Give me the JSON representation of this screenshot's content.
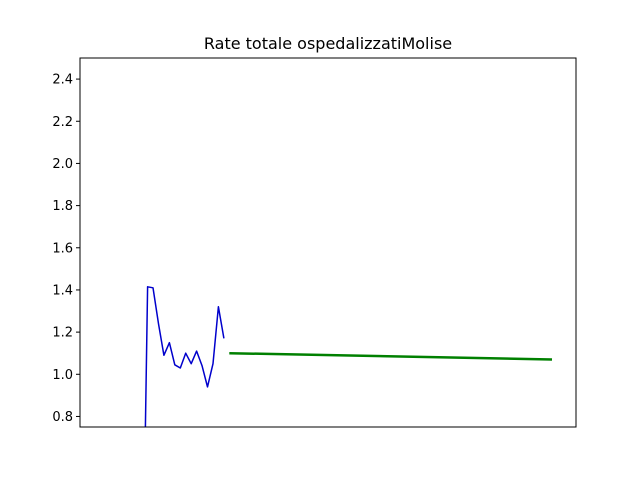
{
  "chart_data": {
    "type": "line",
    "title": "Rate totale ospedalizzatiMolise",
    "xlabel": "",
    "ylabel": "",
    "xlim": [
      0,
      91
    ],
    "ylim": [
      0.75,
      2.5
    ],
    "x_ticks_visible": false,
    "y_ticks": [
      0.8,
      1.0,
      1.2,
      1.4,
      1.6,
      1.8,
      2.0,
      2.2,
      2.4
    ],
    "y_tick_labels": [
      "0.8",
      "1.0",
      "1.2",
      "1.4",
      "1.6",
      "1.8",
      "2.0",
      "2.2",
      "2.4"
    ],
    "grid": false,
    "series": [
      {
        "color": "#0000cc",
        "line_width": 1.5,
        "x": [
          12,
          12.4,
          13.4,
          14.4,
          15.4,
          16.4,
          17.4,
          18.4,
          19.4,
          20.4,
          21.4,
          22.4,
          23.4,
          24.4,
          25.4,
          26.4
        ],
        "y": [
          0.75,
          1.415,
          1.41,
          1.24,
          1.09,
          1.15,
          1.045,
          1.03,
          1.1,
          1.05,
          1.11,
          1.04,
          0.94,
          1.05,
          1.32,
          1.17
        ]
      },
      {
        "color": "#008000",
        "line_width": 2.5,
        "x": [
          27.4,
          86.6
        ],
        "y": [
          1.1,
          1.07
        ]
      }
    ]
  }
}
